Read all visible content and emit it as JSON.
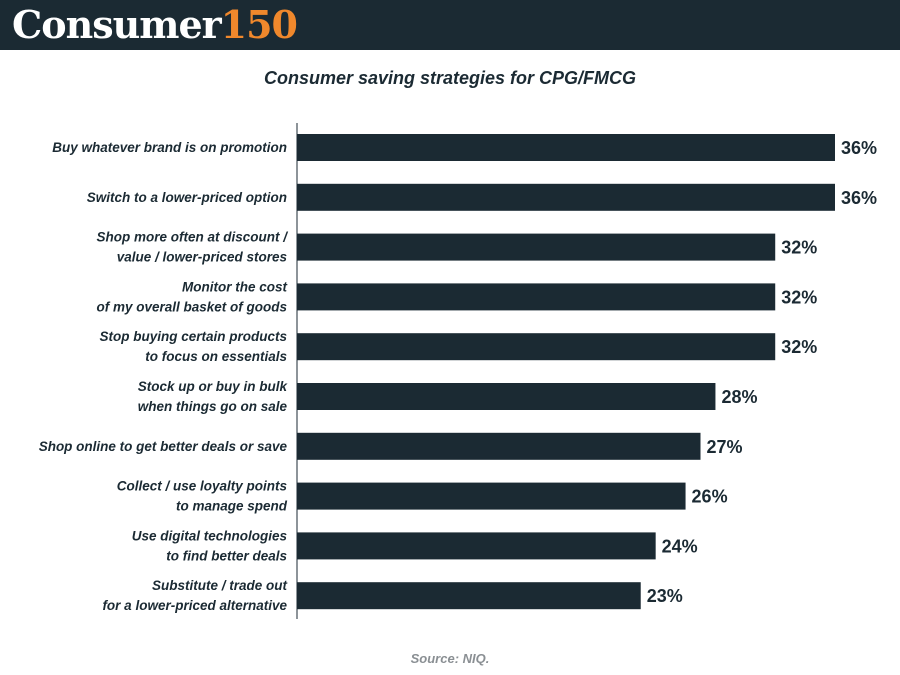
{
  "header": {
    "logo_word": "Consumer",
    "logo_number": "150"
  },
  "colors": {
    "header_bg": "#1b2a33",
    "bar": "#1b2a33",
    "logo_accent": "#f0882c",
    "source_text": "#8a8f93"
  },
  "chart_data": {
    "type": "bar",
    "orientation": "horizontal",
    "title": "Consumer saving strategies for CPG/FMCG",
    "categories": [
      [
        "Buy whatever brand is on promotion"
      ],
      [
        "Switch to a lower-priced option"
      ],
      [
        "Shop more often at discount /",
        "value / lower-priced stores"
      ],
      [
        "Monitor the cost",
        "of my overall basket of goods"
      ],
      [
        "Stop buying certain products",
        "to focus on essentials"
      ],
      [
        "Stock up or buy in bulk",
        "when things go on sale"
      ],
      [
        "Shop online to get better deals or save"
      ],
      [
        "Collect / use loyalty points",
        "to manage spend"
      ],
      [
        "Use digital technologies",
        "to find better deals"
      ],
      [
        "Substitute / trade out",
        "for a lower-priced alternative"
      ]
    ],
    "values": [
      36,
      36,
      32,
      32,
      32,
      28,
      27,
      26,
      24,
      23
    ],
    "value_labels": [
      "36%",
      "36%",
      "32%",
      "32%",
      "32%",
      "28%",
      "27%",
      "26%",
      "24%",
      "23%"
    ],
    "unit": "%",
    "xlim": [
      0,
      36
    ],
    "grid": false,
    "legend": "none"
  },
  "source": "Source: NIQ."
}
